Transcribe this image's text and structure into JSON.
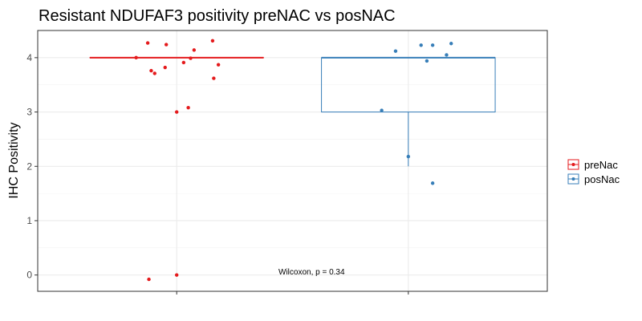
{
  "chart_data": {
    "type": "box",
    "title": "Resistant NDUFAF3 positivity preNAC vs posNAC",
    "xlabel": "",
    "ylabel": "IHC Positivity",
    "ylim": [
      -0.3,
      4.5
    ],
    "yticks": [
      0,
      1,
      2,
      3,
      4
    ],
    "grid": true,
    "legend_position": "right",
    "annotation": "Wilcoxon, p = 0.34",
    "series": [
      {
        "name": "preNac",
        "color": "#e41a1c",
        "box": {
          "min": 4,
          "q1": 4,
          "median": 4,
          "q3": 4,
          "max": 4
        },
        "points": [
          {
            "x": -0.125,
            "y": 4.27
          },
          {
            "x": -0.045,
            "y": 4.24
          },
          {
            "x": 0.155,
            "y": 4.31
          },
          {
            "x": -0.175,
            "y": 4.0
          },
          {
            "x": 0.06,
            "y": 3.99
          },
          {
            "x": 0.03,
            "y": 3.91
          },
          {
            "x": 0.075,
            "y": 4.14
          },
          {
            "x": 0.18,
            "y": 3.87
          },
          {
            "x": -0.05,
            "y": 3.82
          },
          {
            "x": -0.11,
            "y": 3.76
          },
          {
            "x": -0.095,
            "y": 3.71
          },
          {
            "x": 0.16,
            "y": 3.62
          },
          {
            "x": 0.05,
            "y": 3.08
          },
          {
            "x": 0.0,
            "y": 3.0
          },
          {
            "x": -0.12,
            "y": -0.08
          },
          {
            "x": 0.0,
            "y": 0.0
          }
        ]
      },
      {
        "name": "posNac",
        "color": "#377eb8",
        "box": {
          "min": 2.0,
          "q1": 3.0,
          "median": 4.0,
          "q3": 4.0,
          "max": 4.0
        },
        "points": [
          {
            "x": -0.055,
            "y": 4.12
          },
          {
            "x": 0.055,
            "y": 4.23
          },
          {
            "x": 0.105,
            "y": 4.23
          },
          {
            "x": 0.185,
            "y": 4.26
          },
          {
            "x": 0.165,
            "y": 4.05
          },
          {
            "x": 0.08,
            "y": 3.94
          },
          {
            "x": -0.115,
            "y": 3.03
          },
          {
            "x": 0.0,
            "y": 2.18
          },
          {
            "x": 0.105,
            "y": 1.69
          }
        ]
      }
    ]
  }
}
